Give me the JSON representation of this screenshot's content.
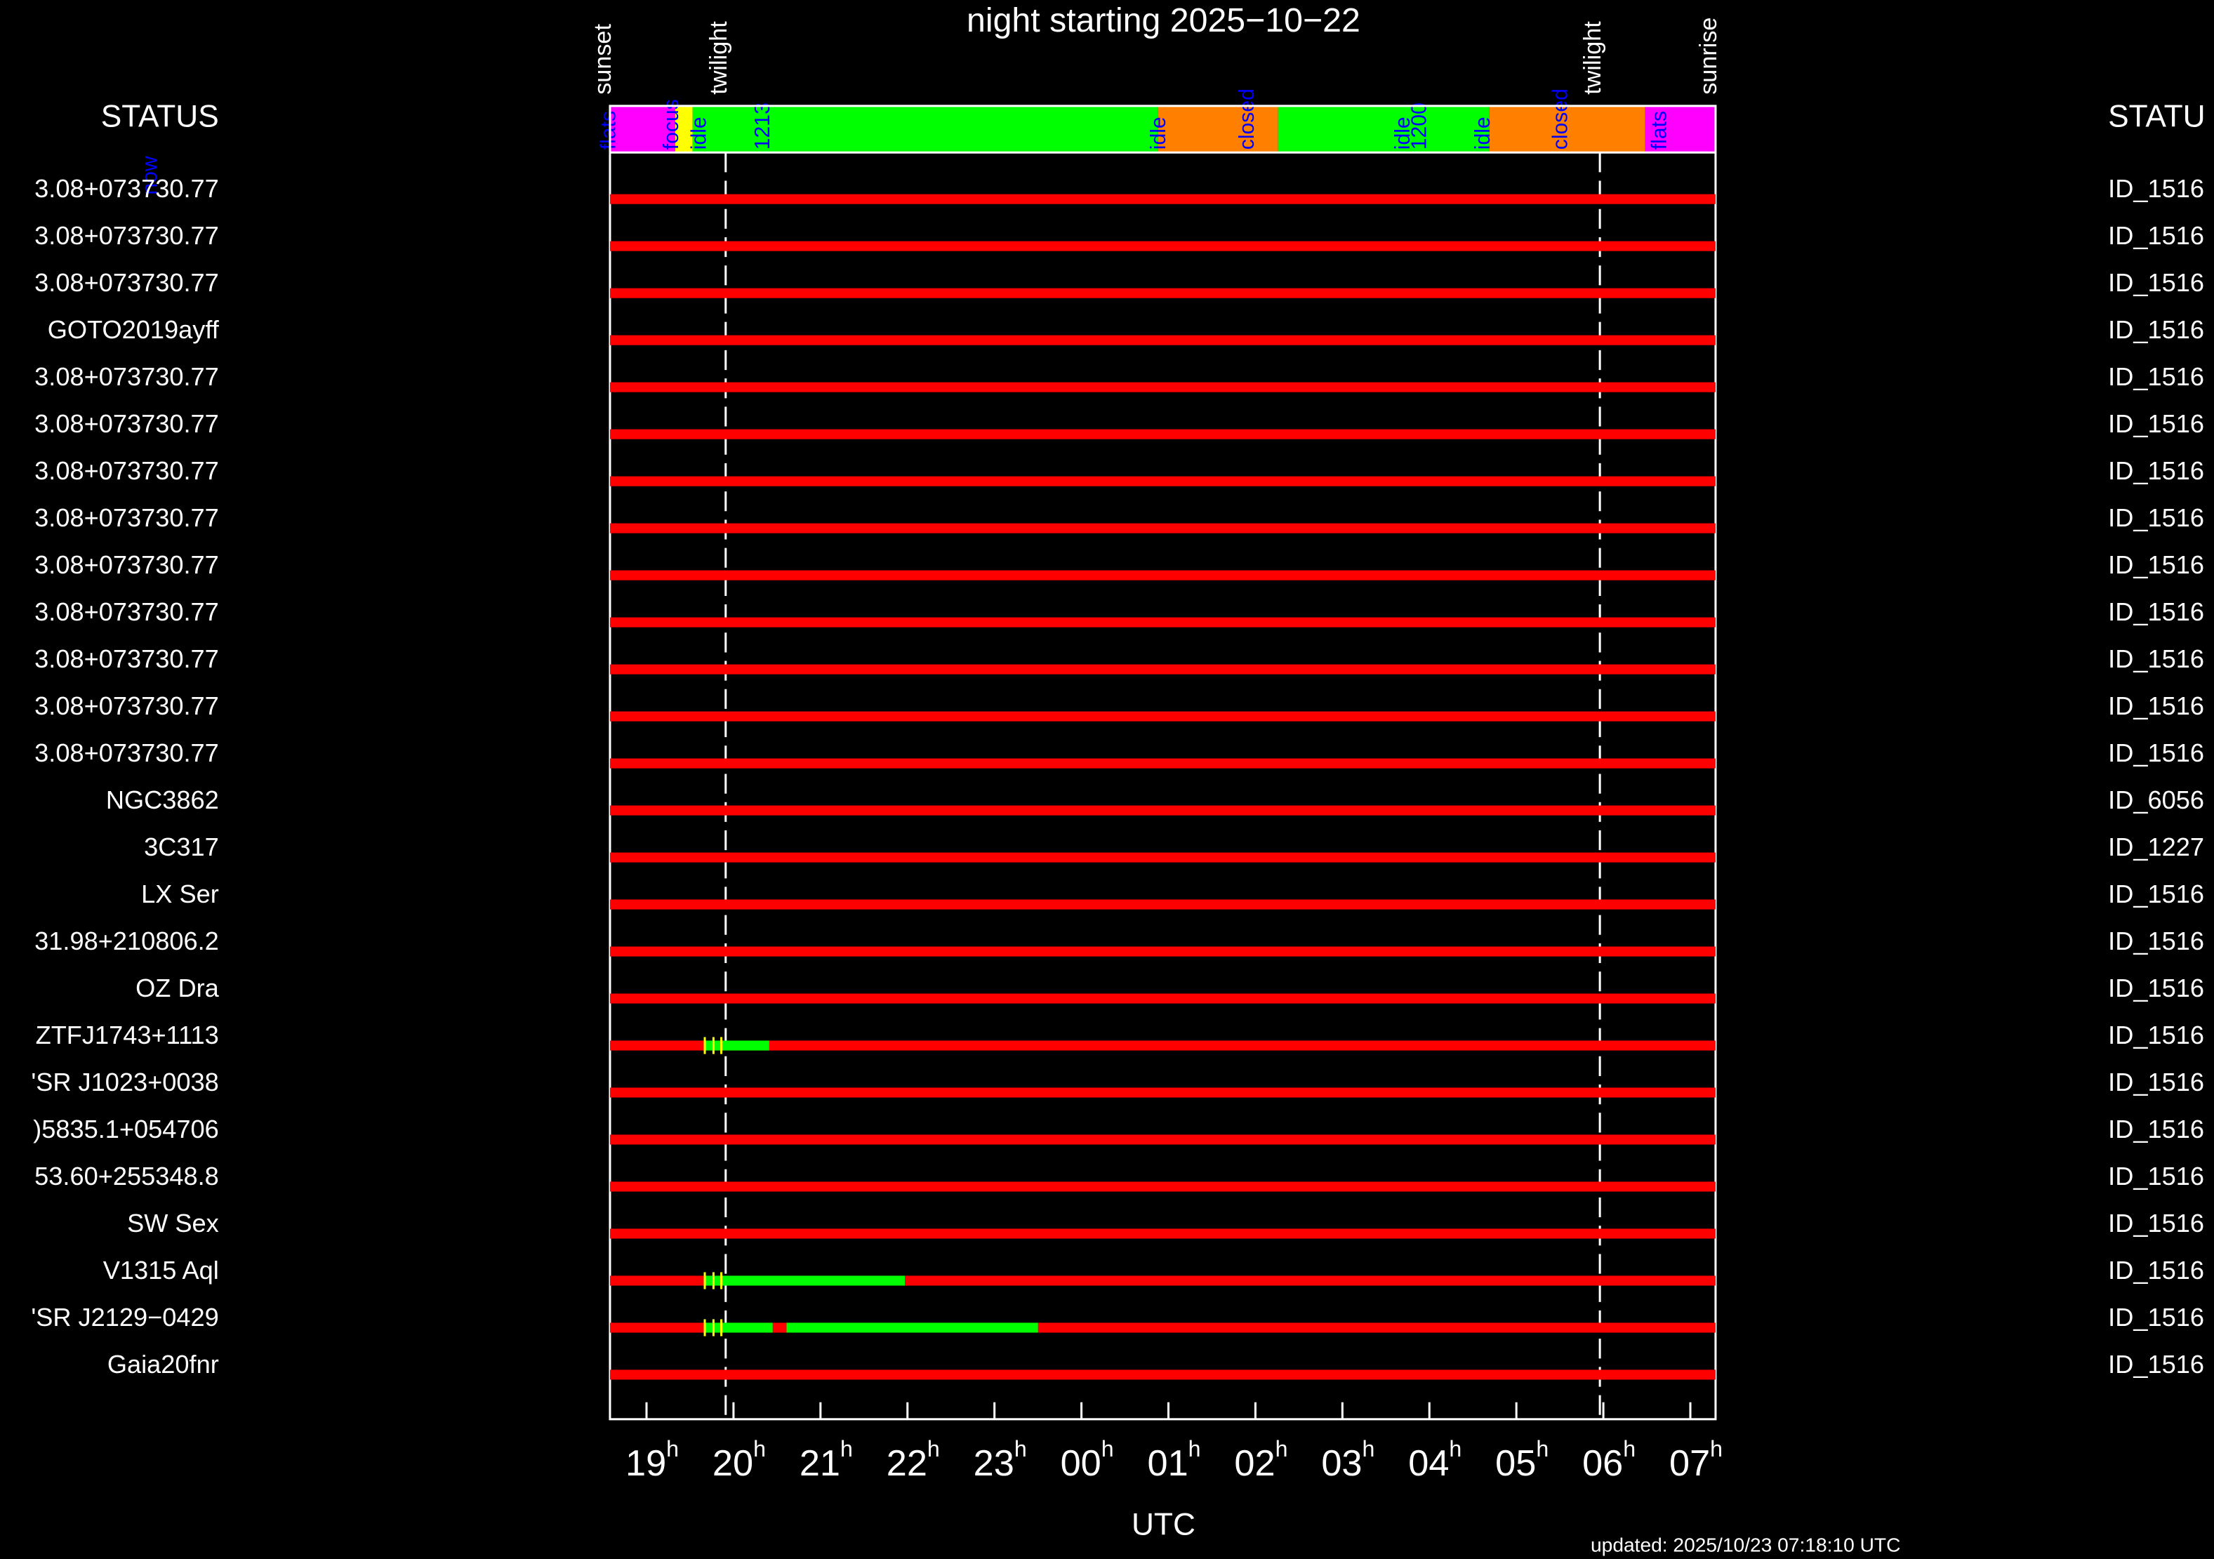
{
  "chart_data": {
    "type": "timeline",
    "title": "night starting 2025−10−22",
    "xlabel": "UTC",
    "updated": "updated: 2025/10/23 07:18:10 UTC",
    "status_title_left": "STATUS",
    "status_title_right": "STATU",
    "now_label": "now",
    "xlim": [
      18.58,
      31.29
    ],
    "xticks": [
      {
        "value": 19,
        "label": "19h"
      },
      {
        "value": 20,
        "label": "20h"
      },
      {
        "value": 21,
        "label": "21h"
      },
      {
        "value": 22,
        "label": "22h"
      },
      {
        "value": 23,
        "label": "23h"
      },
      {
        "value": 24,
        "label": "00h"
      },
      {
        "value": 25,
        "label": "01h"
      },
      {
        "value": 26,
        "label": "02h"
      },
      {
        "value": 27,
        "label": "03h"
      },
      {
        "value": 28,
        "label": "04h"
      },
      {
        "value": 29,
        "label": "05h"
      },
      {
        "value": 30,
        "label": "06h"
      },
      {
        "value": 31,
        "label": "07h"
      }
    ],
    "events": [
      {
        "label": "sunset",
        "x": 18.58,
        "dashed": false
      },
      {
        "label": "twilight",
        "x": 19.91,
        "dashed": true
      },
      {
        "label": "twilight",
        "x": 29.96,
        "dashed": true
      },
      {
        "label": "sunrise",
        "x": 31.29,
        "dashed": false
      }
    ],
    "status_segments": [
      {
        "start": 18.58,
        "end": 19.33,
        "color": "#ff00ff"
      },
      {
        "start": 19.33,
        "end": 19.53,
        "color": "#ffff00"
      },
      {
        "start": 19.53,
        "end": 24.88,
        "color": "#00ff00"
      },
      {
        "start": 24.88,
        "end": 26.26,
        "color": "#ff8000"
      },
      {
        "start": 26.26,
        "end": 28.69,
        "color": "#00ff00"
      },
      {
        "start": 28.69,
        "end": 30.48,
        "color": "#ff8000"
      },
      {
        "start": 30.48,
        "end": 31.29,
        "color": "#ff00ff"
      }
    ],
    "status_labels": [
      {
        "text": "flats",
        "x": 18.48
      },
      {
        "text": "focus",
        "x": 19.2
      },
      {
        "text": "idle",
        "x": 19.52
      },
      {
        "text": "1213",
        "x": 20.25
      },
      {
        "text": "idle",
        "x": 24.8
      },
      {
        "text": "closed",
        "x": 25.82
      },
      {
        "text": "idle",
        "x": 27.61
      },
      {
        "text": "1200",
        "x": 27.8
      },
      {
        "text": "idle",
        "x": 28.53
      },
      {
        "text": "closed",
        "x": 29.42
      },
      {
        "text": "flats",
        "x": 30.56
      }
    ],
    "bar_color": "#ff0000",
    "marker_color": "#ffff00",
    "rows": [
      {
        "name": "3.08+073730.77",
        "id": "ID_1516",
        "segments": [],
        "markers": []
      },
      {
        "name": "3.08+073730.77",
        "id": "ID_1516",
        "segments": [],
        "markers": []
      },
      {
        "name": "3.08+073730.77",
        "id": "ID_1516",
        "segments": [],
        "markers": []
      },
      {
        "name": "GOTO2019ayff",
        "id": "ID_1516",
        "segments": [],
        "markers": []
      },
      {
        "name": "3.08+073730.77",
        "id": "ID_1516",
        "segments": [],
        "markers": []
      },
      {
        "name": "3.08+073730.77",
        "id": "ID_1516",
        "segments": [],
        "markers": []
      },
      {
        "name": "3.08+073730.77",
        "id": "ID_1516",
        "segments": [],
        "markers": []
      },
      {
        "name": "3.08+073730.77",
        "id": "ID_1516",
        "segments": [],
        "markers": []
      },
      {
        "name": "3.08+073730.77",
        "id": "ID_1516",
        "segments": [],
        "markers": []
      },
      {
        "name": "3.08+073730.77",
        "id": "ID_1516",
        "segments": [],
        "markers": []
      },
      {
        "name": "3.08+073730.77",
        "id": "ID_1516",
        "segments": [],
        "markers": []
      },
      {
        "name": "3.08+073730.77",
        "id": "ID_1516",
        "segments": [],
        "markers": []
      },
      {
        "name": "3.08+073730.77",
        "id": "ID_1516",
        "segments": [],
        "markers": []
      },
      {
        "name": "NGC3862",
        "id": "ID_6056",
        "segments": [],
        "markers": []
      },
      {
        "name": "3C317",
        "id": "ID_1227",
        "segments": [],
        "markers": []
      },
      {
        "name": "LX Ser",
        "id": "ID_1516",
        "segments": [],
        "markers": []
      },
      {
        "name": "31.98+210806.2",
        "id": "ID_1516",
        "segments": [],
        "markers": []
      },
      {
        "name": "OZ Dra",
        "id": "ID_1516",
        "segments": [],
        "markers": []
      },
      {
        "name": "ZTFJ1743+1113",
        "id": "ID_1516",
        "segments": [
          {
            "start": 19.67,
            "end": 20.41,
            "color": "#00ff00"
          }
        ],
        "markers": [
          19.67,
          19.77,
          19.86
        ]
      },
      {
        "name": "'SR J1023+0038",
        "id": "ID_1516",
        "segments": [],
        "markers": []
      },
      {
        "name": ")5835.1+054706",
        "id": "ID_1516",
        "segments": [],
        "markers": []
      },
      {
        "name": "53.60+255348.8",
        "id": "ID_1516",
        "segments": [],
        "markers": []
      },
      {
        "name": "SW Sex",
        "id": "ID_1516",
        "segments": [],
        "markers": []
      },
      {
        "name": "V1315 Aql",
        "id": "ID_1516",
        "segments": [
          {
            "start": 19.67,
            "end": 21.97,
            "color": "#00ff00"
          }
        ],
        "markers": [
          19.67,
          19.77,
          19.86
        ]
      },
      {
        "name": "'SR J2129−0429",
        "id": "ID_1516",
        "segments": [
          {
            "start": 19.67,
            "end": 20.45,
            "color": "#00ff00"
          },
          {
            "start": 20.61,
            "end": 23.5,
            "color": "#00ff00"
          }
        ],
        "markers": [
          19.67,
          19.77,
          19.86
        ]
      },
      {
        "name": "Gaia20fnr",
        "id": "ID_1516",
        "segments": [],
        "markers": []
      }
    ]
  }
}
